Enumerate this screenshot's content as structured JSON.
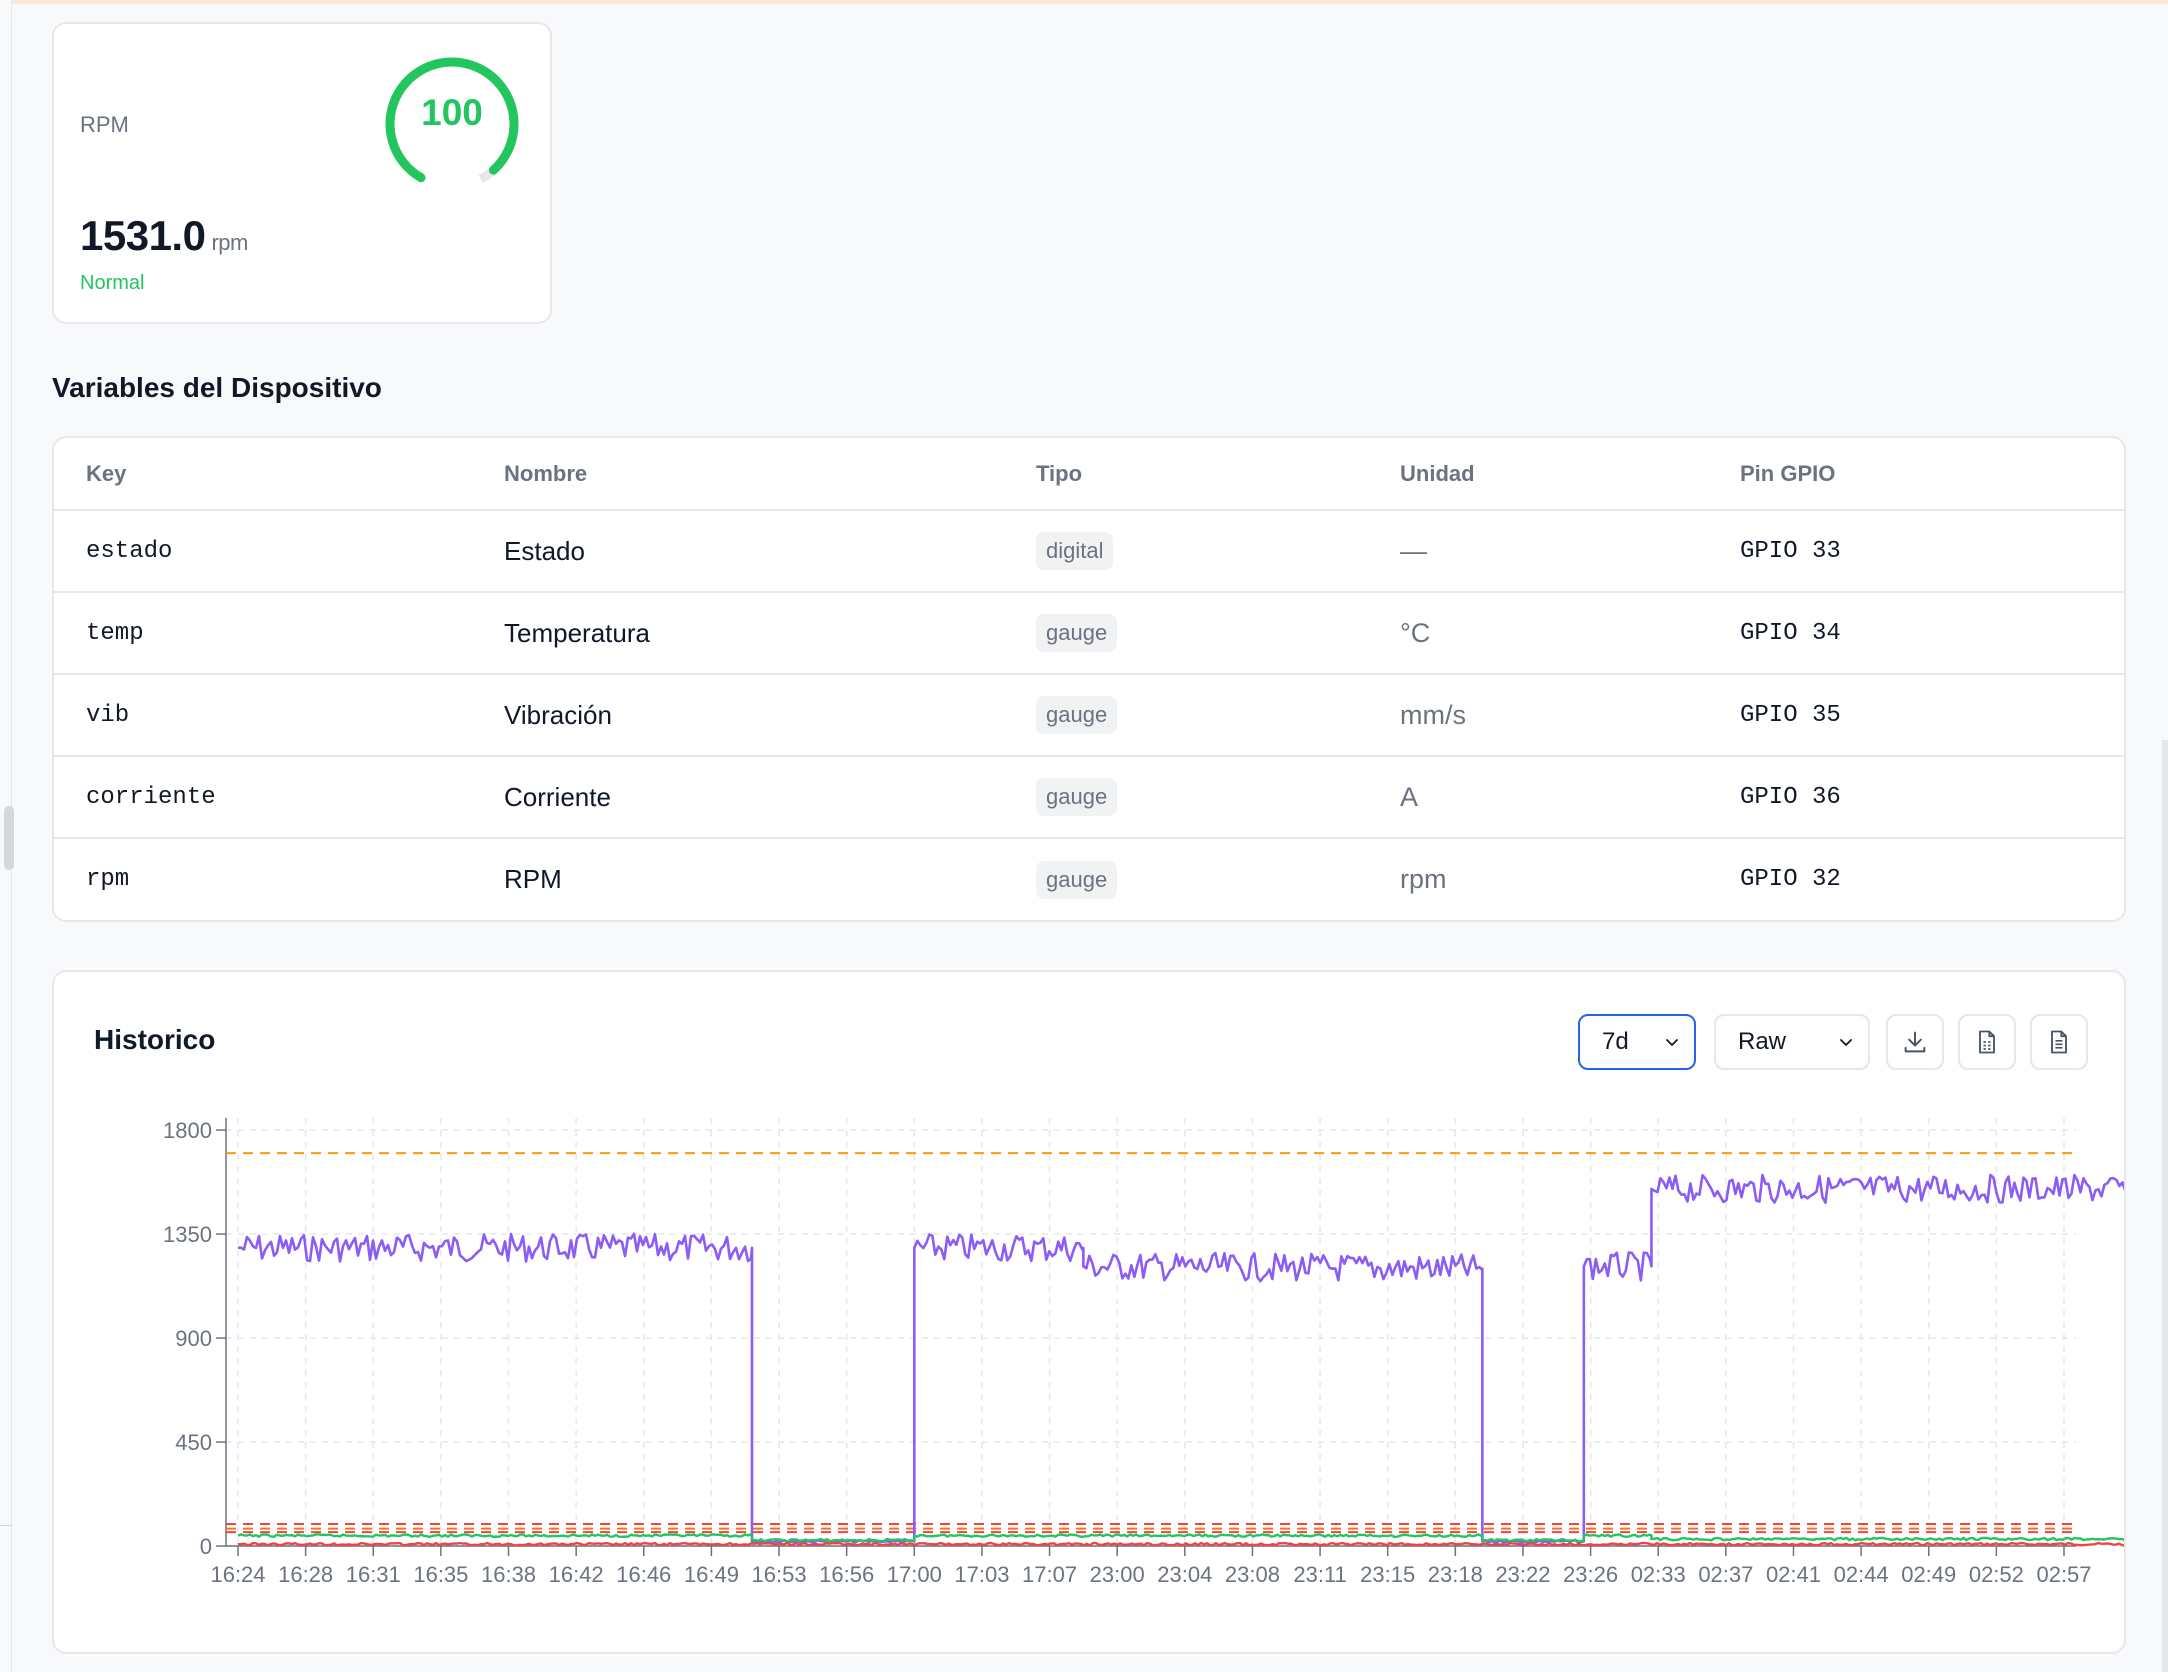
{
  "rpm_card": {
    "label": "RPM",
    "gauge_value": "100",
    "gauge_fraction": 0.8,
    "value": "1531.0",
    "unit": "rpm",
    "status": "Normal",
    "accent": "#22c55e"
  },
  "variables": {
    "title": "Variables del Dispositivo",
    "headers": [
      "Key",
      "Nombre",
      "Tipo",
      "Unidad",
      "Pin GPIO"
    ],
    "rows": [
      {
        "key": "estado",
        "name": "Estado",
        "type": "digital",
        "unit": "—",
        "pin": "GPIO 33"
      },
      {
        "key": "temp",
        "name": "Temperatura",
        "type": "gauge",
        "unit": "°C",
        "pin": "GPIO 34"
      },
      {
        "key": "vib",
        "name": "Vibración",
        "type": "gauge",
        "unit": "mm/s",
        "pin": "GPIO 35"
      },
      {
        "key": "corriente",
        "name": "Corriente",
        "type": "gauge",
        "unit": "A",
        "pin": "GPIO 36"
      },
      {
        "key": "rpm",
        "name": "RPM",
        "type": "gauge",
        "unit": "rpm",
        "pin": "GPIO 32"
      }
    ]
  },
  "historico": {
    "title": "Historico",
    "range_select": "7d",
    "mode_select": "Raw",
    "buttons": [
      "download-icon",
      "csv-file-icon",
      "document-icon"
    ]
  },
  "chart_data": {
    "type": "line",
    "categories": [
      "16:24",
      "16:28",
      "16:31",
      "16:35",
      "16:38",
      "16:42",
      "16:46",
      "16:49",
      "16:53",
      "16:56",
      "17:00",
      "17:03",
      "17:07",
      "23:00",
      "23:04",
      "23:08",
      "23:11",
      "23:15",
      "23:18",
      "23:22",
      "23:26",
      "02:33",
      "02:37",
      "02:41",
      "02:44",
      "02:49",
      "02:52",
      "02:57"
    ],
    "y_ticks": [
      "0",
      "450",
      "900",
      "1350",
      "1800"
    ],
    "ylim": [
      0,
      1800
    ],
    "grid": true,
    "thresholds": [
      {
        "value": 1700,
        "color": "#f59e0b"
      },
      {
        "value": 95,
        "color": "#ef4444"
      },
      {
        "value": 75,
        "color": "#f97316"
      },
      {
        "value": 60,
        "color": "#ef4444"
      }
    ],
    "series": [
      {
        "color": "#8b5cf6",
        "segments": [
          [
            0,
            1290
          ],
          [
            7.6,
            1290
          ],
          [
            7.6,
            20
          ],
          [
            10,
            20
          ],
          [
            10,
            1290
          ],
          [
            12.5,
            1290
          ],
          [
            12.5,
            1210
          ],
          [
            18.4,
            1200
          ],
          [
            18.4,
            20
          ],
          [
            19.9,
            20
          ],
          [
            19.9,
            1210
          ],
          [
            20.9,
            1210
          ],
          [
            20.9,
            1545
          ],
          [
            28,
            1545
          ]
        ]
      },
      {
        "color": "#22c55e",
        "segments": [
          [
            0,
            45
          ],
          [
            7.6,
            45
          ],
          [
            7.6,
            25
          ],
          [
            10,
            25
          ],
          [
            10,
            45
          ],
          [
            18.4,
            45
          ],
          [
            18.4,
            25
          ],
          [
            19.9,
            25
          ],
          [
            19.9,
            45
          ],
          [
            20.9,
            45
          ],
          [
            20.9,
            30
          ],
          [
            28,
            30
          ]
        ]
      },
      {
        "color": "#ef4444",
        "segments": [
          [
            0,
            8
          ],
          [
            28,
            8
          ]
        ]
      }
    ]
  }
}
